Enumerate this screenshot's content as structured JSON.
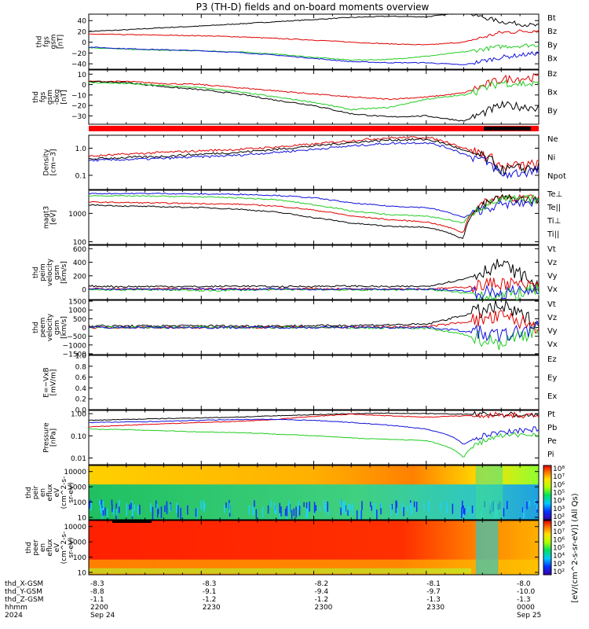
{
  "title": "P3 (TH-D) fields and on-board moments overview",
  "colors": {
    "black": "#000000",
    "red": "#e00000",
    "green": "#22cc22",
    "blue": "#1010dd"
  },
  "panels": [
    {
      "id": "fgs1",
      "ylabel": [
        "thd",
        "fgs",
        "gsm",
        "[nT]"
      ],
      "scale": "linear",
      "ylim": [
        -50,
        52
      ],
      "ticks": [
        {
          "v": 40,
          "l": "40"
        },
        {
          "v": 20,
          "l": "20"
        },
        {
          "v": 0,
          "l": "0"
        },
        {
          "v": -20,
          "l": "−20"
        },
        {
          "v": -40,
          "l": "−40"
        }
      ],
      "legend": [
        {
          "label": "Bt",
          "color": "#000000"
        },
        {
          "label": "Bz",
          "color": "#e00000"
        },
        {
          "label": "By",
          "color": "#22cc22"
        },
        {
          "label": "Bx",
          "color": "#1010dd"
        }
      ]
    },
    {
      "id": "fgs2",
      "ylabel": [
        "thd",
        "fgs",
        "gsm",
        "-bkg",
        "[nT]"
      ],
      "scale": "linear",
      "ylim": [
        -38,
        14
      ],
      "ticks": [
        {
          "v": 10,
          "l": "10"
        },
        {
          "v": 0,
          "l": "0"
        },
        {
          "v": -10,
          "l": "−10"
        },
        {
          "v": -20,
          "l": "−20"
        },
        {
          "v": -30,
          "l": "−30"
        }
      ],
      "legend": [
        {
          "label": "Bz",
          "color": "#e00000"
        },
        {
          "label": "Bx",
          "color": "#000000"
        },
        {
          "label": "By",
          "color": "#22cc22"
        }
      ]
    },
    {
      "id": "density",
      "ylabel": [
        "Density",
        "[cm−3]"
      ],
      "scale": "log",
      "ylim": [
        0.03,
        3
      ],
      "ticks": [
        {
          "v": 1,
          "l": "1.0"
        },
        {
          "v": 0.1,
          "l": "0.1"
        }
      ],
      "legend": [
        {
          "label": "Ne",
          "color": "#e00000"
        },
        {
          "label": "Ni",
          "color": "#000000"
        },
        {
          "label": "Npot",
          "color": "#1010dd"
        }
      ]
    },
    {
      "id": "temp",
      "ylabel": [
        "magt3",
        "[eV]"
      ],
      "scale": "log",
      "ylim": [
        80,
        6500
      ],
      "ticks": [
        {
          "v": 1000,
          "l": "1000"
        },
        {
          "v": 100,
          "l": "100"
        }
      ],
      "legend": [
        {
          "label": "Te⊥",
          "color": "#e00000"
        },
        {
          "label": "Te||",
          "color": "#000000"
        },
        {
          "label": "Ti⊥",
          "color": "#1010dd"
        },
        {
          "label": "Ti||",
          "color": "#22cc22"
        }
      ]
    },
    {
      "id": "peim",
      "ylabel": [
        "thd",
        "peim",
        "velocity",
        "gsm",
        "[km/s]"
      ],
      "scale": "linear",
      "ylim": [
        -150,
        650
      ],
      "ticks": [
        {
          "v": 600,
          "l": "600"
        },
        {
          "v": 400,
          "l": "400"
        },
        {
          "v": 200,
          "l": "200"
        },
        {
          "v": 0,
          "l": "0"
        }
      ],
      "legend": [
        {
          "label": "Vt",
          "color": "#000000"
        },
        {
          "label": "Vz",
          "color": "#e00000"
        },
        {
          "label": "Vy",
          "color": "#22cc22"
        },
        {
          "label": "Vx",
          "color": "#1010dd"
        }
      ]
    },
    {
      "id": "peem",
      "ylabel": [
        "thd",
        "peem",
        "velocity",
        "gsm",
        "[km/s]"
      ],
      "scale": "linear",
      "ylim": [
        -1550,
        1550
      ],
      "ticks": [
        {
          "v": 1500,
          "l": "1500"
        },
        {
          "v": 1000,
          "l": "1000"
        },
        {
          "v": 500,
          "l": "500"
        },
        {
          "v": 0,
          "l": "0"
        },
        {
          "v": -500,
          "l": "−500"
        },
        {
          "v": -1000,
          "l": "−1000"
        },
        {
          "v": -1500,
          "l": "−1500"
        }
      ],
      "legend": [
        {
          "label": "Vt",
          "color": "#000000"
        },
        {
          "label": "Vz",
          "color": "#e00000"
        },
        {
          "label": "Vy",
          "color": "#22cc22"
        },
        {
          "label": "Vx",
          "color": "#1010dd"
        }
      ]
    },
    {
      "id": "efield",
      "ylabel": [
        "E=−VxB",
        "[mV/m]"
      ],
      "scale": "linear",
      "ylim": [
        0,
        1
      ],
      "ticks": [
        {
          "v": 1,
          "l": "1.0"
        },
        {
          "v": 0.8,
          "l": "0.8"
        },
        {
          "v": 0.6,
          "l": "0.6"
        },
        {
          "v": 0.4,
          "l": "0.4"
        },
        {
          "v": 0.2,
          "l": "0.2"
        },
        {
          "v": 0,
          "l": "0.0"
        }
      ],
      "legend": [
        {
          "label": "Ez",
          "color": "#e00000"
        },
        {
          "label": "Ey",
          "color": "#22cc22"
        },
        {
          "label": "Ex",
          "color": "#1010dd"
        }
      ]
    },
    {
      "id": "pressure",
      "ylabel": [
        "Pressure",
        "[nPa]"
      ],
      "scale": "log",
      "ylim": [
        0.005,
        1.4
      ],
      "ticks": [
        {
          "v": 1,
          "l": "1.00"
        },
        {
          "v": 0.1,
          "l": "0.10"
        },
        {
          "v": 0.01,
          "l": "0.01"
        }
      ],
      "legend": [
        {
          "label": "Pt",
          "color": "#000000"
        },
        {
          "label": "Pb",
          "color": "#e00000"
        },
        {
          "label": "Pe",
          "color": "#22cc22"
        },
        {
          "label": "Pi",
          "color": "#1010dd"
        }
      ]
    },
    {
      "id": "peir",
      "ylabel": [
        "thd",
        "peir",
        "en",
        "eflux",
        "eV",
        "(cm^2-s-",
        "sr-eV)"
      ],
      "scale": "log",
      "ylim": [
        7,
        25000
      ],
      "ticks": [
        {
          "v": 10000,
          "l": "10000"
        },
        {
          "v": 1000,
          "l": "1000"
        },
        {
          "v": 100,
          "l": "100"
        },
        {
          "v": 10,
          "l": "10"
        }
      ],
      "legend": []
    },
    {
      "id": "peer",
      "ylabel": [
        "thd",
        "peer",
        "en",
        "eflux",
        "eV",
        "(cm^2-s-",
        "sr-eV)"
      ],
      "scale": "log",
      "ylim": [
        7,
        25000
      ],
      "ticks": [
        {
          "v": 10000,
          "l": "10000"
        },
        {
          "v": 1000,
          "l": "1000"
        },
        {
          "v": 100,
          "l": "100"
        },
        {
          "v": 10,
          "l": "10"
        }
      ],
      "legend": []
    }
  ],
  "colorbars": [
    {
      "ticks": [
        "10⁸",
        "10⁷",
        "10⁶",
        "10⁵",
        "10⁴",
        "10³",
        "10²"
      ]
    },
    {
      "ticks": [
        "10⁸",
        "10⁷",
        "10⁶",
        "10⁵",
        "10⁴",
        "10³",
        "10²"
      ]
    }
  ],
  "colorbar_label": "[eV/(cm^2-s-sr-eV)] (All Qs)",
  "xaxis": {
    "times": [
      "2200",
      "2230",
      "2300",
      "2330",
      "0000"
    ],
    "rows": [
      {
        "label": "thd_X-GSM",
        "values": [
          "-8.3",
          "-8.3",
          "-8.2",
          "-8.1",
          "-8.0"
        ]
      },
      {
        "label": "thd_Y-GSM",
        "values": [
          "-8.8",
          "-9.1",
          "-9.4",
          "-9.7",
          "-10.0"
        ]
      },
      {
        "label": "thd_Z-GSM",
        "values": [
          "-1.1",
          "-1.2",
          "-1.2",
          "-1.3",
          "-1.3"
        ]
      },
      {
        "label": "hhmm",
        "values": [
          "2200",
          "2230",
          "2300",
          "2330",
          "0000"
        ]
      },
      {
        "label": "2024",
        "values": [
          "Sep 24",
          "",
          "",
          "",
          "Sep 25"
        ]
      }
    ]
  },
  "chart_data": {
    "type": "line",
    "title": "P3 (TH-D) fields and on-board moments overview",
    "x": [
      "2200",
      "2210",
      "2220",
      "2230",
      "2240",
      "2250",
      "2300",
      "2310",
      "2320",
      "2330",
      "2340",
      "2350",
      "0000"
    ],
    "panels": [
      {
        "name": "fgs",
        "series": [
          {
            "name": "Bt",
            "values": [
              20,
              23,
              27,
              30,
              34,
              38,
              42,
              46,
              48,
              47,
              55,
              38,
              30
            ]
          },
          {
            "name": "Bz",
            "values": [
              15,
              14,
              13,
              12,
              10,
              7,
              4,
              0,
              -3,
              -5,
              0,
              18,
              22
            ]
          },
          {
            "name": "By",
            "values": [
              -10,
              -13,
              -15,
              -16,
              -18,
              -22,
              -28,
              -33,
              -32,
              -26,
              -18,
              -8,
              -5
            ]
          },
          {
            "name": "Bx",
            "values": [
              -9,
              -12,
              -14,
              -16,
              -19,
              -24,
              -30,
              -36,
              -38,
              -38,
              -42,
              -28,
              -20
            ]
          }
        ]
      },
      {
        "name": "fgs-bkg",
        "series": [
          {
            "name": "Bz",
            "values": [
              3,
              3,
              1,
              0,
              -3,
              -6,
              -9,
              -12,
              -14,
              -12,
              -8,
              5,
              7
            ]
          },
          {
            "name": "Bx",
            "values": [
              3,
              2,
              -2,
              -5,
              -9,
              -15,
              -20,
              -28,
              -31,
              -30,
              -35,
              -20,
              -22
            ]
          },
          {
            "name": "By",
            "values": [
              2,
              1,
              -1,
              -3,
              -7,
              -12,
              -17,
              -24,
              -22,
              -14,
              -10,
              2,
              0
            ]
          }
        ]
      },
      {
        "name": "density",
        "series": [
          {
            "name": "Ne",
            "values": [
              0.5,
              0.6,
              0.7,
              0.8,
              0.9,
              1.1,
              1.4,
              1.9,
              2.4,
              2.5,
              1.0,
              0.2,
              0.25
            ]
          },
          {
            "name": "Ni",
            "values": [
              0.4,
              0.45,
              0.5,
              0.6,
              0.7,
              0.9,
              1.2,
              1.6,
              2.0,
              2.1,
              0.8,
              0.15,
              0.2
            ]
          },
          {
            "name": "Npot",
            "values": [
              0.35,
              0.38,
              0.42,
              0.48,
              0.55,
              0.7,
              0.9,
              1.2,
              1.5,
              1.6,
              0.6,
              0.1,
              0.15
            ]
          }
        ]
      },
      {
        "name": "temperature",
        "series": [
          {
            "name": "Te⊥",
            "values": [
              2500,
              2400,
              2300,
              2200,
              2100,
              1800,
              1300,
              800,
              600,
              500,
              200,
              4000,
              3000
            ]
          },
          {
            "name": "Te||",
            "values": [
              2000,
              1800,
              1700,
              1600,
              1400,
              1100,
              700,
              450,
              350,
              330,
              120,
              3500,
              2800
            ]
          },
          {
            "name": "Ti⊥",
            "values": [
              5000,
              5000,
              5000,
              4800,
              4700,
              4300,
              3500,
              2300,
              1800,
              1600,
              700,
              2000,
              2500
            ]
          },
          {
            "name": "Ti||",
            "values": [
              4200,
              4100,
              4000,
              3800,
              3500,
              3000,
              2000,
              1200,
              900,
              800,
              450,
              3000,
              3200
            ]
          }
        ]
      },
      {
        "name": "peim velocity",
        "series": [
          {
            "name": "Vt",
            "values": [
              50,
              40,
              45,
              40,
              50,
              40,
              45,
              50,
              40,
              45,
              150,
              380,
              60
            ]
          },
          {
            "name": "Vz",
            "values": [
              10,
              5,
              8,
              5,
              10,
              5,
              10,
              5,
              10,
              5,
              30,
              100,
              20
            ]
          },
          {
            "name": "Vy",
            "values": [
              -5,
              -10,
              -5,
              -20,
              -10,
              -5,
              0,
              -10,
              -5,
              0,
              -50,
              -100,
              -10
            ]
          },
          {
            "name": "Vx",
            "values": [
              0,
              5,
              0,
              10,
              0,
              5,
              0,
              5,
              0,
              5,
              -20,
              -60,
              0
            ]
          }
        ]
      },
      {
        "name": "peem velocity",
        "series": [
          {
            "name": "Vt",
            "values": [
              100,
              80,
              90,
              100,
              80,
              90,
              100,
              120,
              150,
              180,
              700,
              1200,
              200
            ]
          },
          {
            "name": "Vz",
            "values": [
              0,
              10,
              0,
              -10,
              0,
              10,
              0,
              20,
              30,
              40,
              300,
              600,
              50
            ]
          },
          {
            "name": "Vy",
            "values": [
              0,
              -10,
              0,
              10,
              0,
              -10,
              0,
              -20,
              -30,
              -40,
              -400,
              -900,
              -50
            ]
          },
          {
            "name": "Vx",
            "values": [
              0,
              5,
              0,
              -5,
              0,
              5,
              0,
              10,
              -10,
              20,
              -200,
              -500,
              20
            ]
          }
        ]
      },
      {
        "name": "pressure",
        "series": [
          {
            "name": "Pt",
            "values": [
              0.5,
              0.55,
              0.6,
              0.65,
              0.7,
              0.8,
              0.9,
              1.0,
              1.05,
              1.0,
              0.95,
              0.9,
              0.85
            ]
          },
          {
            "name": "Pb",
            "values": [
              0.25,
              0.3,
              0.35,
              0.4,
              0.45,
              0.55,
              0.75,
              0.95,
              0.8,
              0.7,
              0.8,
              0.9,
              0.8
            ]
          },
          {
            "name": "Pe",
            "values": [
              0.2,
              0.19,
              0.17,
              0.15,
              0.14,
              0.12,
              0.1,
              0.08,
              0.07,
              0.06,
              0.01,
              0.1,
              0.12
            ]
          },
          {
            "name": "Pi",
            "values": [
              0.4,
              0.42,
              0.45,
              0.5,
              0.55,
              0.55,
              0.5,
              0.4,
              0.3,
              0.2,
              0.04,
              0.15,
              0.2
            ]
          }
        ]
      }
    ]
  }
}
